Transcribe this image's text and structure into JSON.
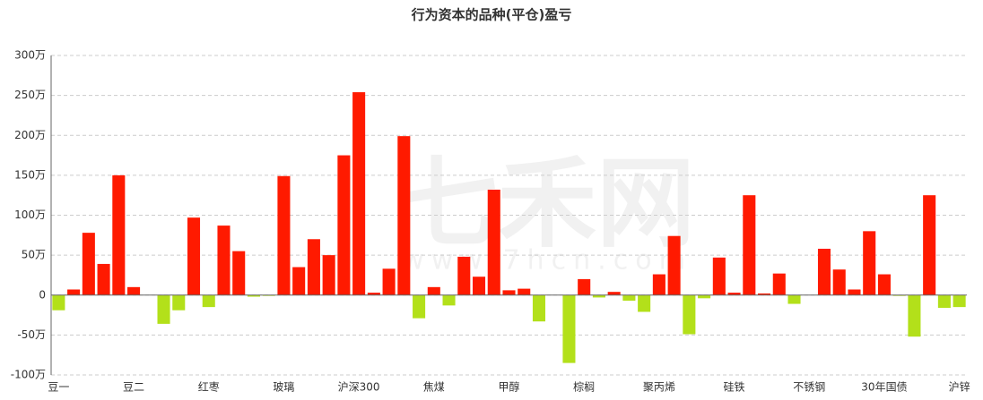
{
  "chart_data": {
    "type": "bar",
    "title": "行为资本的品种(平仓)盈亏",
    "watermark": "七禾网",
    "watermark_url": "www.7hcn.com",
    "categories": [
      "豆一",
      null,
      null,
      null,
      null,
      "豆二",
      null,
      null,
      null,
      null,
      "红枣",
      null,
      null,
      null,
      null,
      "玻璃",
      null,
      null,
      null,
      null,
      "沪深300",
      null,
      null,
      null,
      null,
      "焦煤",
      null,
      null,
      null,
      null,
      "甲醇",
      null,
      null,
      null,
      null,
      "棕榈",
      null,
      null,
      null,
      null,
      "聚丙烯",
      null,
      null,
      null,
      null,
      "硅铁",
      null,
      null,
      null,
      null,
      "不锈钢",
      null,
      null,
      null,
      null,
      "30年国债",
      null,
      null,
      null,
      null,
      "沪锌"
    ],
    "values": [
      -19,
      7,
      78,
      39,
      150,
      10,
      0,
      -36,
      -19,
      97,
      -15,
      87,
      55,
      -2,
      -1,
      149,
      35,
      70,
      50,
      175,
      254,
      3,
      33,
      199,
      -29,
      10,
      -13,
      48,
      23,
      132,
      6,
      8,
      -33,
      0,
      -85,
      20,
      -3,
      4,
      -7,
      -21,
      26,
      74,
      -49,
      -4,
      47,
      3,
      125,
      2,
      27,
      -11,
      0,
      58,
      32,
      7,
      80,
      26,
      -1,
      -52,
      125,
      -16,
      -15
    ],
    "positive_color": "#ff1a00",
    "negative_color": "#b3e01a",
    "ylim": [
      -100,
      300
    ],
    "yticks": [
      {
        "value": -100,
        "label": "-100万"
      },
      {
        "value": -50,
        "label": "-50万"
      },
      {
        "value": 0,
        "label": "0"
      },
      {
        "value": 50,
        "label": "50万"
      },
      {
        "value": 100,
        "label": "100万"
      },
      {
        "value": 150,
        "label": "150万"
      },
      {
        "value": 200,
        "label": "200万"
      },
      {
        "value": 250,
        "label": "250万"
      },
      {
        "value": 300,
        "label": "300万"
      }
    ],
    "grid": true
  }
}
